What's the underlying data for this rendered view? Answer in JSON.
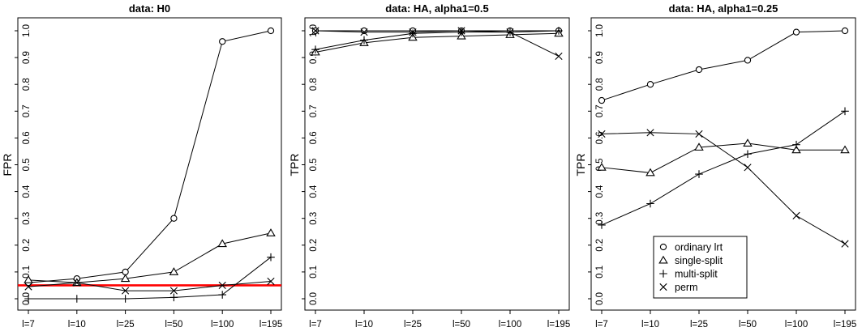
{
  "figure": {
    "background": "#ffffff",
    "line_color": "#000000"
  },
  "chart_data": [
    {
      "type": "line",
      "title": "data: H0",
      "xlabel": "",
      "ylabel": "FPR",
      "categories": [
        "l=7",
        "l=10",
        "l=25",
        "l=50",
        "l=100",
        "l=195"
      ],
      "ylim": [
        0,
        1.0
      ],
      "yticks": [
        0.0,
        0.1,
        0.2,
        0.3,
        0.4,
        0.5,
        0.6,
        0.7,
        0.8,
        0.9,
        1.0
      ],
      "ytick_labels": [
        "0.0",
        "0.1",
        "0.2",
        "0.3",
        "0.4",
        "0.5",
        "0.6",
        "0.7",
        "0.8",
        "0.9",
        "1.0"
      ],
      "grid": false,
      "series": [
        {
          "name": "ordinary lrt",
          "marker": "circle",
          "values": [
            0.06,
            0.075,
            0.1,
            0.3,
            0.96,
            1.0
          ]
        },
        {
          "name": "single-split",
          "marker": "triangle",
          "values": [
            0.07,
            0.06,
            0.075,
            0.1,
            0.205,
            0.245
          ]
        },
        {
          "name": "multi-split",
          "marker": "plus",
          "values": [
            0.0,
            0.0,
            0.0,
            0.005,
            0.015,
            0.155
          ]
        },
        {
          "name": "perm",
          "marker": "x",
          "values": [
            0.045,
            0.06,
            0.03,
            0.03,
            0.05,
            0.065
          ]
        }
      ],
      "reference_line": {
        "y": 0.05,
        "color": "#ff0000"
      },
      "legend": null
    },
    {
      "type": "line",
      "title": "data: HA, alpha1=0.5",
      "xlabel": "",
      "ylabel": "TPR",
      "categories": [
        "l=7",
        "l=10",
        "l=25",
        "l=50",
        "l=100",
        "l=195"
      ],
      "ylim": [
        0,
        1.0
      ],
      "yticks": [
        0.0,
        0.1,
        0.2,
        0.3,
        0.4,
        0.5,
        0.6,
        0.7,
        0.8,
        0.9,
        1.0
      ],
      "ytick_labels": [
        "0.0",
        "0.1",
        "0.2",
        "0.3",
        "0.4",
        "0.5",
        "0.6",
        "0.7",
        "0.8",
        "0.9",
        "1.0"
      ],
      "grid": false,
      "series": [
        {
          "name": "ordinary lrt",
          "marker": "circle",
          "values": [
            1.0,
            1.0,
            1.0,
            1.0,
            1.0,
            1.0
          ]
        },
        {
          "name": "single-split",
          "marker": "triangle",
          "values": [
            0.92,
            0.955,
            0.975,
            0.98,
            0.985,
            0.99
          ]
        },
        {
          "name": "multi-split",
          "marker": "plus",
          "values": [
            0.93,
            0.965,
            0.99,
            0.995,
            0.995,
            1.0
          ]
        },
        {
          "name": "perm",
          "marker": "x",
          "values": [
            1.0,
            0.995,
            0.995,
            1.0,
            0.995,
            0.905
          ]
        }
      ],
      "reference_line": null,
      "legend": null
    },
    {
      "type": "line",
      "title": "data: HA, alpha1=0.25",
      "xlabel": "",
      "ylabel": "TPR",
      "categories": [
        "l=7",
        "l=10",
        "l=25",
        "l=50",
        "l=100",
        "l=195"
      ],
      "ylim": [
        0,
        1.0
      ],
      "yticks": [
        0.0,
        0.1,
        0.2,
        0.3,
        0.4,
        0.5,
        0.6,
        0.7,
        0.8,
        0.9,
        1.0
      ],
      "ytick_labels": [
        "0.0",
        "0.1",
        "0.2",
        "0.3",
        "0.4",
        "0.5",
        "0.6",
        "0.7",
        "0.8",
        "0.9",
        "1.0"
      ],
      "grid": false,
      "series": [
        {
          "name": "ordinary lrt",
          "marker": "circle",
          "values": [
            0.74,
            0.8,
            0.855,
            0.89,
            0.995,
            1.0
          ]
        },
        {
          "name": "single-split",
          "marker": "triangle",
          "values": [
            0.49,
            0.47,
            0.565,
            0.58,
            0.555,
            0.555
          ]
        },
        {
          "name": "multi-split",
          "marker": "plus",
          "values": [
            0.275,
            0.355,
            0.465,
            0.54,
            0.575,
            0.7
          ]
        },
        {
          "name": "perm",
          "marker": "x",
          "values": [
            0.615,
            0.62,
            0.615,
            0.49,
            0.31,
            0.205
          ]
        }
      ],
      "reference_line": null,
      "legend": {
        "position": "bottom-left",
        "entries": [
          {
            "label": "ordinary lrt",
            "marker": "circle"
          },
          {
            "label": "single-split",
            "marker": "triangle"
          },
          {
            "label": "multi-split",
            "marker": "plus"
          },
          {
            "label": "perm",
            "marker": "x"
          }
        ]
      }
    }
  ]
}
